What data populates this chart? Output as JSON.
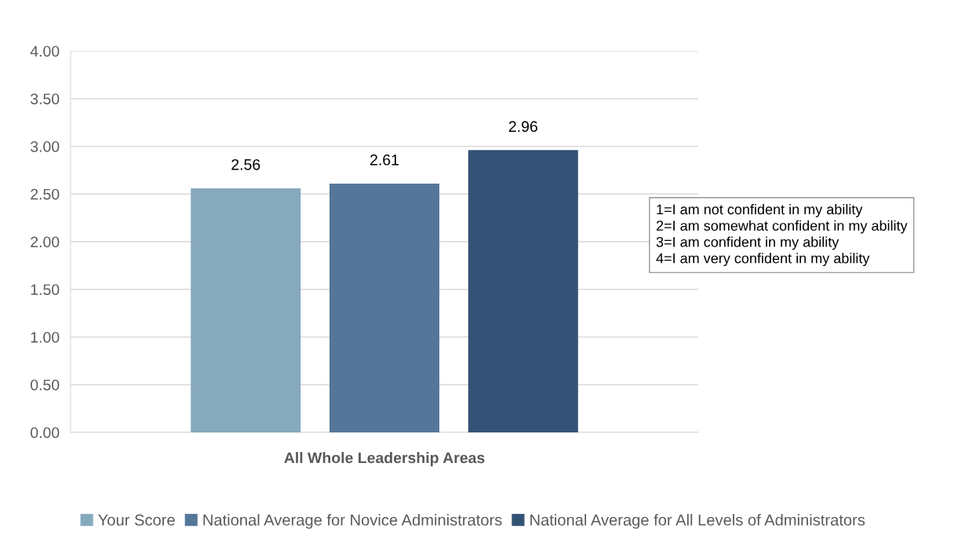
{
  "chart_data": {
    "type": "bar",
    "categories": [
      "All Whole Leadership Areas"
    ],
    "series": [
      {
        "name": "Your Score",
        "color": "#87a9bd",
        "values": [
          2.56
        ]
      },
      {
        "name": "National Average for Novice Administrators",
        "color": "#547799",
        "values": [
          2.61
        ]
      },
      {
        "name": "National Average for All Levels of Administrators",
        "color": "#335275",
        "values": [
          2.96
        ]
      }
    ],
    "ylim": [
      0,
      4
    ],
    "yticks": [
      {
        "value": 0,
        "label": "0.00"
      },
      {
        "value": 0.5,
        "label": "0.50"
      },
      {
        "value": 1,
        "label": "1.00"
      },
      {
        "value": 1.5,
        "label": "1.50"
      },
      {
        "value": 2,
        "label": "2.00"
      },
      {
        "value": 2.5,
        "label": "2.50"
      },
      {
        "value": 3,
        "label": "3.00"
      },
      {
        "value": 3.5,
        "label": "3.50"
      },
      {
        "value": 4,
        "label": "4.00"
      }
    ],
    "grid": "y",
    "legend": "bottom",
    "data_labels": true,
    "annotations": [
      "1=I am not confident in my ability",
      "2=I am somewhat confident in my ability",
      "3=I am confident in my ability",
      "4=I am very confident in my ability"
    ]
  }
}
